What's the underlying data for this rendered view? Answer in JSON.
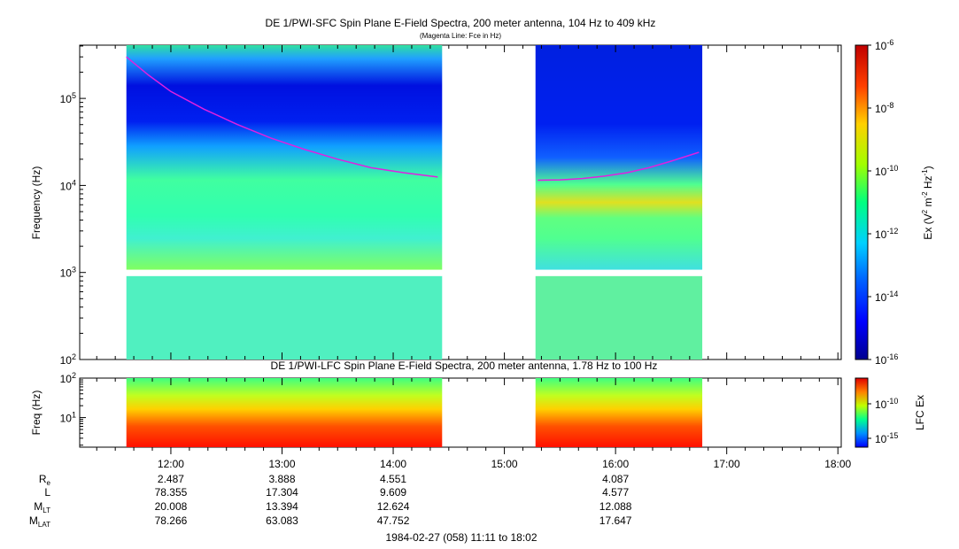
{
  "chart_data": [
    {
      "type": "heatmap",
      "panel": "SFC",
      "title": "DE 1/PWI-SFC  Spin Plane E-Field Spectra, 200 meter antenna, 104 Hz to 409 kHz",
      "subtitle": "(Magenta Line: Fce in Hz)",
      "ylabel": "Frequency (Hz)",
      "yscale": "log",
      "ylim": [
        100,
        409000
      ],
      "ytick_labels": [
        {
          "base": "10",
          "exp": "2"
        },
        {
          "base": "10",
          "exp": "3"
        },
        {
          "base": "10",
          "exp": "4"
        },
        {
          "base": "10",
          "exp": "5"
        }
      ],
      "colorbar": {
        "label_main": "Ex (V",
        "label_sup1": "2",
        "label_mid": " m",
        "label_sup2": "-2",
        "label_mid2": " Hz",
        "label_sup3": "-1",
        "label_end": ")",
        "range_log10": [
          -16,
          -6
        ],
        "tick_labels": [
          {
            "base": "10",
            "exp": "-6"
          },
          {
            "base": "10",
            "exp": "-8"
          },
          {
            "base": "10",
            "exp": "-10"
          },
          {
            "base": "10",
            "exp": "-12"
          },
          {
            "base": "10",
            "exp": "-14"
          },
          {
            "base": "10",
            "exp": "-16"
          }
        ]
      },
      "data_intervals_hours": [
        [
          11.6,
          14.44
        ],
        [
          15.28,
          16.78
        ]
      ],
      "fce_line": {
        "color": "#e020e0",
        "segments": [
          {
            "x": [
              11.6,
              11.8,
              12.0,
              12.3,
              12.6,
              12.9,
              13.2,
              13.5,
              13.8,
              14.1,
              14.4
            ],
            "y": [
              300000,
              185000,
              120000,
              75000,
              50000,
              35000,
              26000,
              20000,
              16000,
              14000,
              12500
            ]
          },
          {
            "x": [
              15.3,
              15.5,
              15.7,
              15.9,
              16.1,
              16.3,
              16.5,
              16.75
            ],
            "y": [
              11500,
              11600,
              12000,
              12800,
              14000,
              16000,
              19000,
              24000
            ]
          }
        ]
      }
    },
    {
      "type": "heatmap",
      "panel": "LFC",
      "title": "DE 1/PWI-LFC  Spin Plane E-Field Spectra, 200 meter antenna, 1.78 Hz to 100 Hz",
      "ylabel": "Freq (Hz)",
      "yscale": "log",
      "ylim": [
        1.78,
        100
      ],
      "ytick_labels": [
        {
          "base": "10",
          "exp": "1"
        },
        {
          "base": "10",
          "exp": "2"
        }
      ],
      "colorbar": {
        "label": "LFC Ex",
        "tick_labels": [
          {
            "base": "10",
            "exp": "-10"
          },
          {
            "base": "10",
            "exp": "-15"
          }
        ]
      },
      "data_intervals_hours": [
        [
          11.6,
          14.44
        ],
        [
          15.28,
          16.78
        ]
      ]
    }
  ],
  "time_axis": {
    "range_hours": [
      11.18,
      18.03
    ],
    "tick_labels": [
      {
        "h": 12,
        "label": "12:00"
      },
      {
        "h": 13,
        "label": "13:00"
      },
      {
        "h": 14,
        "label": "14:00"
      },
      {
        "h": 15,
        "label": "15:00"
      },
      {
        "h": 16,
        "label": "16:00"
      },
      {
        "h": 17,
        "label": "17:00"
      },
      {
        "h": 18,
        "label": "18:00"
      }
    ]
  },
  "ephemeris": {
    "rows": [
      {
        "label": "R",
        "sub": "e",
        "values": {
          "12": "2.487",
          "13": "3.888",
          "14": "4.551",
          "16": "4.087"
        }
      },
      {
        "label": "L",
        "sub": "",
        "values": {
          "12": "78.355",
          "13": "17.304",
          "14": "9.609",
          "16": "4.577"
        }
      },
      {
        "label": "M",
        "sub": "LT",
        "values": {
          "12": "20.008",
          "13": "13.394",
          "14": "12.624",
          "16": "12.088"
        }
      },
      {
        "label": "M",
        "sub": "LAT",
        "values": {
          "12": "78.266",
          "13": "63.083",
          "14": "47.752",
          "16": "17.647"
        }
      }
    ]
  },
  "footer": "1984-02-27 (058) 11:11 to 18:02"
}
